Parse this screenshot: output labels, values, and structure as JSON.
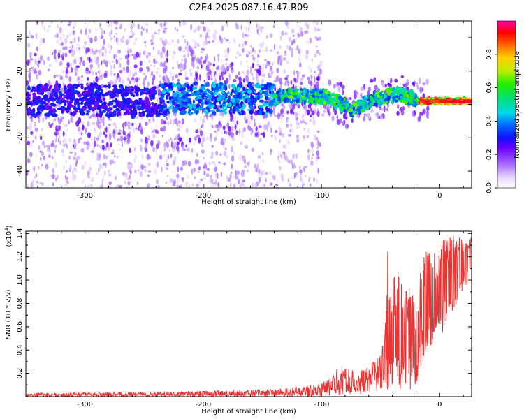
{
  "title": "C2E4.2025.087.16.47.R09",
  "chart_data": [
    {
      "type": "heatmap",
      "xlabel": "Height of straight line (km)",
      "ylabel": "Frequency (Hz)",
      "xlim": [
        -350,
        27
      ],
      "ylim": [
        -50,
        50
      ],
      "x_ticks": [
        -300,
        -200,
        -100,
        0
      ],
      "x_tick_labels": [
        "-300",
        "-200",
        "-100",
        "0"
      ],
      "y_ticks": [
        -40,
        -20,
        0,
        20,
        40
      ],
      "y_tick_labels": [
        "-40",
        "-20",
        "0",
        "20",
        "40"
      ],
      "colorbar": {
        "label": "Normalized spectral amplitude",
        "range": [
          0,
          1
        ],
        "ticks": [
          0.0,
          0.2,
          0.4,
          0.6,
          0.8
        ],
        "tick_labels": [
          "0.0",
          "0.2",
          "0.4",
          "0.6",
          "0.8"
        ]
      },
      "ridge": {
        "x": [
          -350,
          -300,
          -250,
          -230,
          -200,
          -150,
          -130,
          -110,
          -95,
          -85,
          -75,
          -65,
          -55,
          -45,
          -35,
          -25,
          -15,
          -5,
          5,
          15,
          27
        ],
        "y": [
          2,
          3,
          1,
          3,
          4,
          3,
          5,
          5,
          4,
          1,
          -4,
          0,
          3,
          5,
          6,
          4,
          2,
          2,
          2,
          2,
          2
        ]
      },
      "grid": false
    },
    {
      "type": "line",
      "xlabel": "Height of straight line (km)",
      "ylabel": "SNR (10 * v/v)",
      "y_multiplier": "(x10",
      "y_multiplier_exp": "4",
      "y_multiplier_close": ")",
      "xlim": [
        -350,
        27
      ],
      "ylim": [
        0,
        14200
      ],
      "x_ticks": [
        -300,
        -200,
        -100,
        0
      ],
      "x_tick_labels": [
        "-300",
        "-200",
        "-100",
        "0"
      ],
      "y_ticks": [
        2000,
        4000,
        6000,
        8000,
        10000,
        12000,
        14000
      ],
      "y_tick_labels": [
        "0.2",
        "0.4",
        "0.6",
        "0.8",
        "1.0",
        "1.2",
        "1.4"
      ],
      "envelope": {
        "x": [
          -350,
          -250,
          -200,
          -150,
          -120,
          -100,
          -90,
          -85,
          -80,
          -70,
          -60,
          -50,
          -46,
          -44,
          -40,
          -35,
          -30,
          -25,
          -20,
          -15,
          -10,
          -5,
          0,
          5,
          10,
          15,
          20,
          25,
          27
        ],
        "y_low": [
          0,
          0,
          0,
          0,
          0,
          50,
          100,
          100,
          200,
          200,
          300,
          500,
          800,
          500,
          600,
          400,
          500,
          400,
          1000,
          3000,
          4000,
          4500,
          5000,
          6000,
          7000,
          8000,
          9000,
          10000,
          11000
        ],
        "y_high": [
          300,
          400,
          500,
          600,
          800,
          1200,
          1800,
          3000,
          2500,
          2200,
          2500,
          4000,
          6000,
          13000,
          10000,
          11000,
          9000,
          10000,
          8000,
          12000,
          13000,
          13000,
          13000,
          14200,
          14000,
          13500,
          14000,
          14000,
          13500
        ]
      },
      "color": "#ee3333",
      "grid": false
    }
  ]
}
